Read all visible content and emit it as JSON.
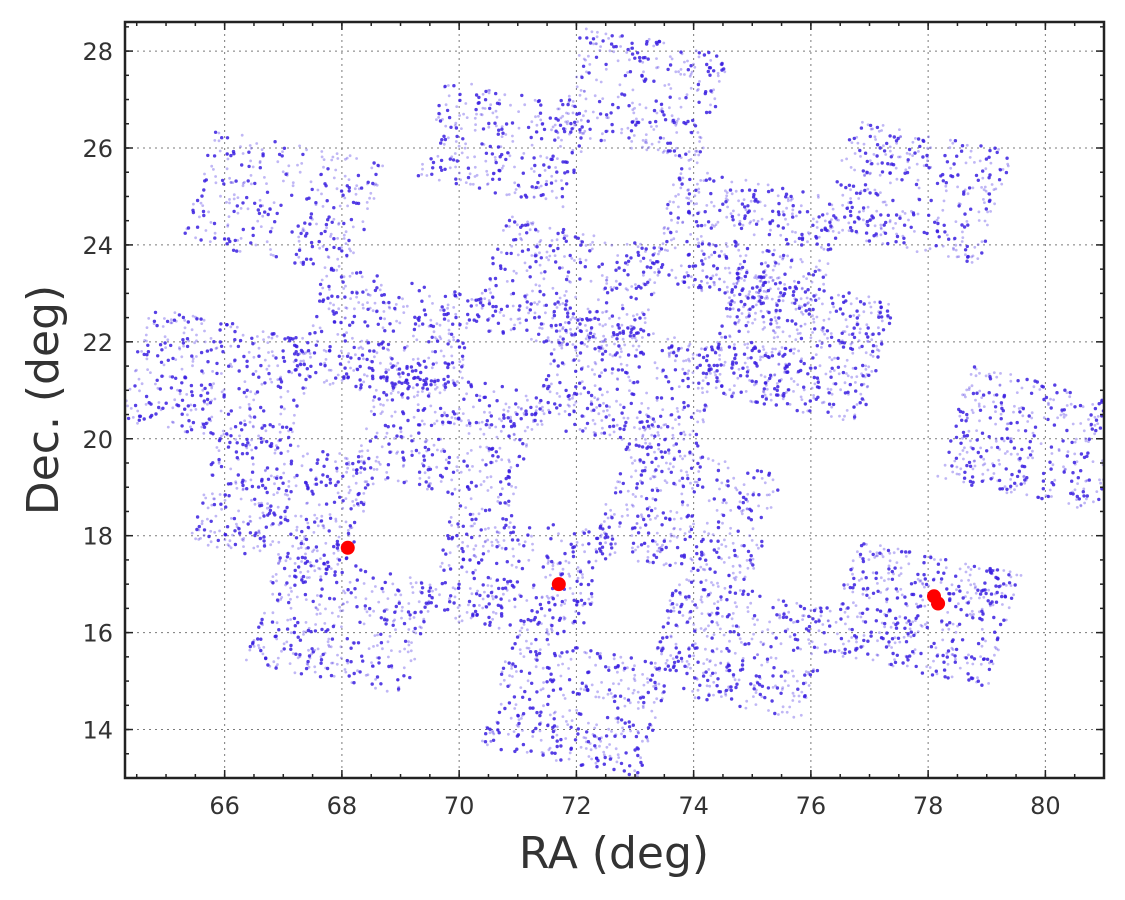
{
  "chart_data": {
    "type": "scatter",
    "title": "",
    "xlabel": "RA (deg)",
    "ylabel": "Dec. (deg)",
    "xlim": [
      64.3,
      81.0
    ],
    "ylim": [
      13.0,
      28.6
    ],
    "xticks": [
      66,
      68,
      70,
      72,
      74,
      76,
      78,
      80
    ],
    "yticks": [
      14,
      16,
      18,
      20,
      22,
      24,
      26,
      28
    ],
    "grid": true,
    "legend": "none",
    "colors": {
      "field_points": "#3a1fe0",
      "highlight_points": "#ff0000"
    },
    "fields": [
      {
        "ra": 67.0,
        "dec": 24.9,
        "w": 3.0,
        "h": 2.4,
        "rot": -14,
        "density": 300
      },
      {
        "ra": 70.8,
        "dec": 26.1,
        "w": 2.6,
        "h": 2.1,
        "rot": -14,
        "density": 280
      },
      {
        "ra": 73.1,
        "dec": 27.1,
        "w": 2.6,
        "h": 2.3,
        "rot": -14,
        "density": 300
      },
      {
        "ra": 77.8,
        "dec": 25.1,
        "w": 2.8,
        "h": 2.4,
        "rot": -14,
        "density": 360
      },
      {
        "ra": 74.9,
        "dec": 24.1,
        "w": 3.0,
        "h": 2.4,
        "rot": -14,
        "density": 420
      },
      {
        "ra": 71.9,
        "dec": 23.1,
        "w": 2.9,
        "h": 2.4,
        "rot": -14,
        "density": 380
      },
      {
        "ra": 68.8,
        "dec": 22.1,
        "w": 2.8,
        "h": 2.4,
        "rot": -14,
        "density": 360
      },
      {
        "ra": 65.9,
        "dec": 21.2,
        "w": 3.0,
        "h": 2.4,
        "rot": -14,
        "density": 380
      },
      {
        "ra": 75.8,
        "dec": 21.9,
        "w": 2.8,
        "h": 2.6,
        "rot": -14,
        "density": 560
      },
      {
        "ra": 72.9,
        "dec": 21.1,
        "w": 2.9,
        "h": 2.4,
        "rot": -14,
        "density": 400
      },
      {
        "ra": 69.8,
        "dec": 20.1,
        "w": 2.8,
        "h": 2.4,
        "rot": -14,
        "density": 380
      },
      {
        "ra": 79.8,
        "dec": 20.0,
        "w": 2.8,
        "h": 2.4,
        "rot": -14,
        "density": 380
      },
      {
        "ra": 67.0,
        "dec": 18.7,
        "w": 2.8,
        "h": 2.4,
        "rot": -14,
        "density": 380
      },
      {
        "ra": 73.9,
        "dec": 18.5,
        "w": 2.8,
        "h": 2.4,
        "rot": -14,
        "density": 380
      },
      {
        "ra": 71.0,
        "dec": 17.2,
        "w": 2.8,
        "h": 2.4,
        "rot": -14,
        "density": 360
      },
      {
        "ra": 77.9,
        "dec": 16.4,
        "w": 2.9,
        "h": 2.4,
        "rot": -14,
        "density": 460
      },
      {
        "ra": 68.0,
        "dec": 16.2,
        "w": 2.8,
        "h": 2.4,
        "rot": -14,
        "density": 360
      },
      {
        "ra": 74.8,
        "dec": 15.7,
        "w": 2.8,
        "h": 2.4,
        "rot": -14,
        "density": 400
      },
      {
        "ra": 72.0,
        "dec": 14.5,
        "w": 2.8,
        "h": 2.4,
        "rot": -14,
        "density": 380
      }
    ],
    "highlights": [
      {
        "ra": 68.1,
        "dec": 17.75
      },
      {
        "ra": 71.7,
        "dec": 17.0
      },
      {
        "ra": 78.1,
        "dec": 16.75
      },
      {
        "ra": 78.17,
        "dec": 16.6
      }
    ]
  }
}
